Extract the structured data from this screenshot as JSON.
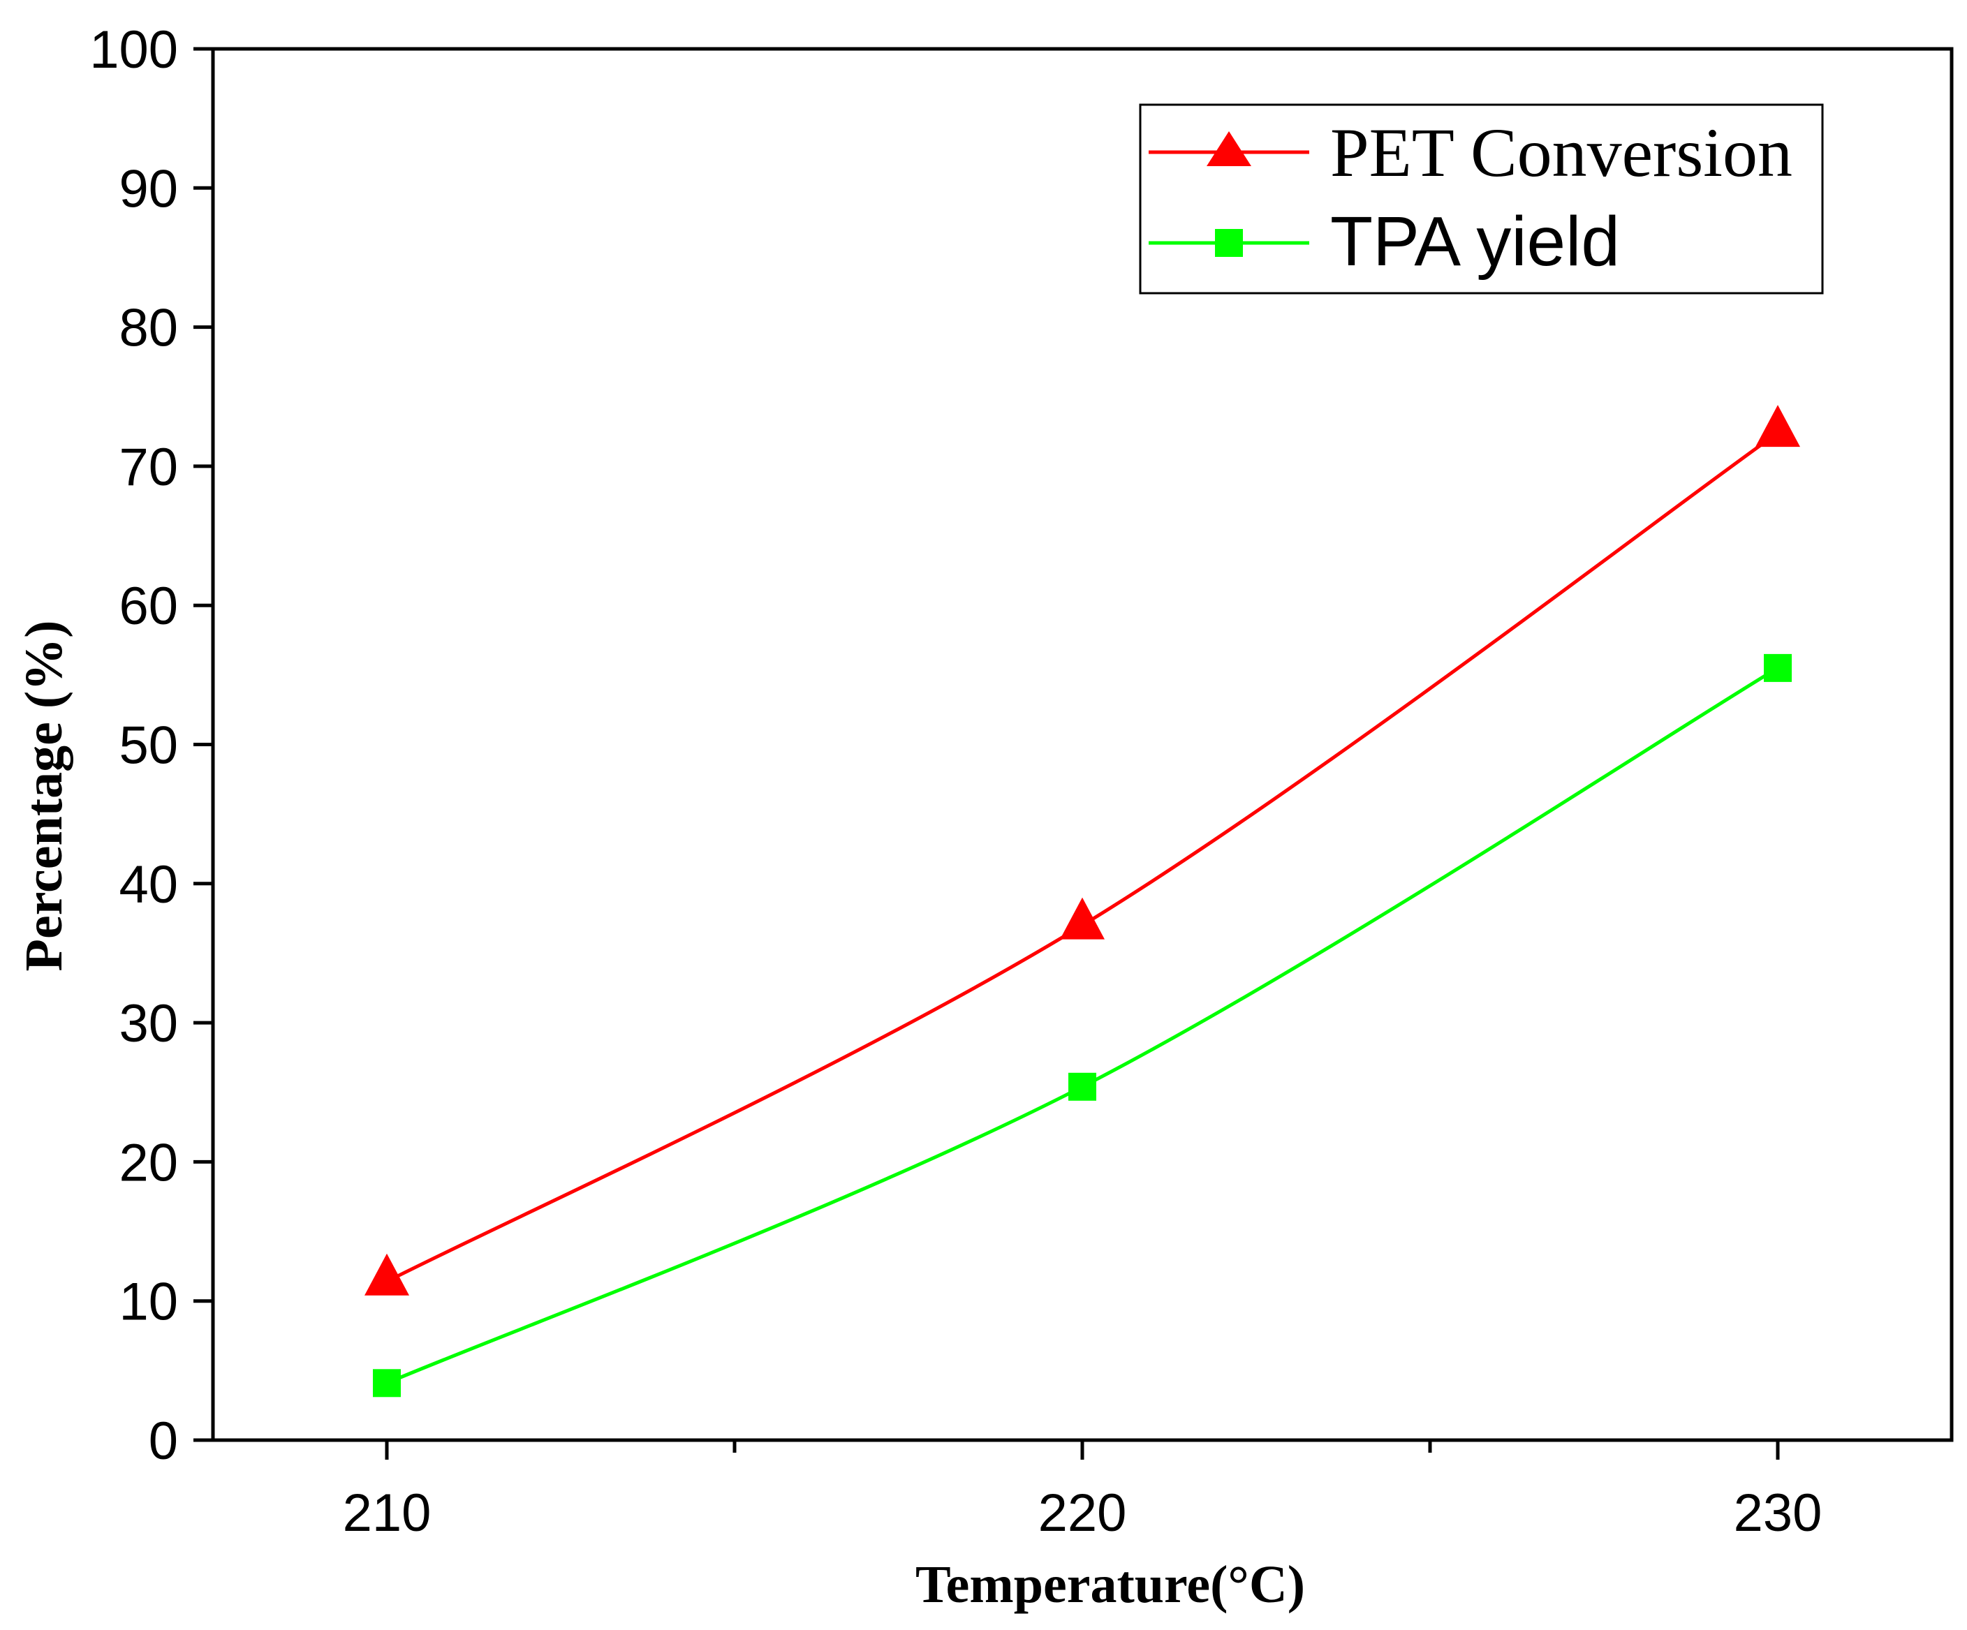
{
  "chart_data": {
    "type": "line",
    "title": "",
    "xlabel": "Temperature(°C)",
    "ylabel": "Percentage (%)",
    "x": [
      210,
      220,
      230
    ],
    "xlim": [
      207.5,
      232.5
    ],
    "ylim": [
      0,
      100
    ],
    "xticks": [
      210,
      215,
      220,
      225,
      230
    ],
    "xtick_labels": [
      "210",
      "",
      "220",
      "",
      "230"
    ],
    "yticks": [
      0,
      10,
      20,
      30,
      40,
      50,
      60,
      70,
      80,
      90,
      100
    ],
    "ytick_labels": [
      "0",
      "10",
      "20",
      "30",
      "40",
      "50",
      "60",
      "70",
      "80",
      "90",
      "100"
    ],
    "grid": false,
    "legend_position": "top-right",
    "series": [
      {
        "name": "PET Conversion",
        "marker": "triangle",
        "color": "#ff0000",
        "values": [
          11.4,
          37.0,
          72.4
        ]
      },
      {
        "name": "TPA yield",
        "marker": "square",
        "color": "#00ff00",
        "values": [
          4.1,
          25.4,
          55.5
        ]
      }
    ]
  }
}
